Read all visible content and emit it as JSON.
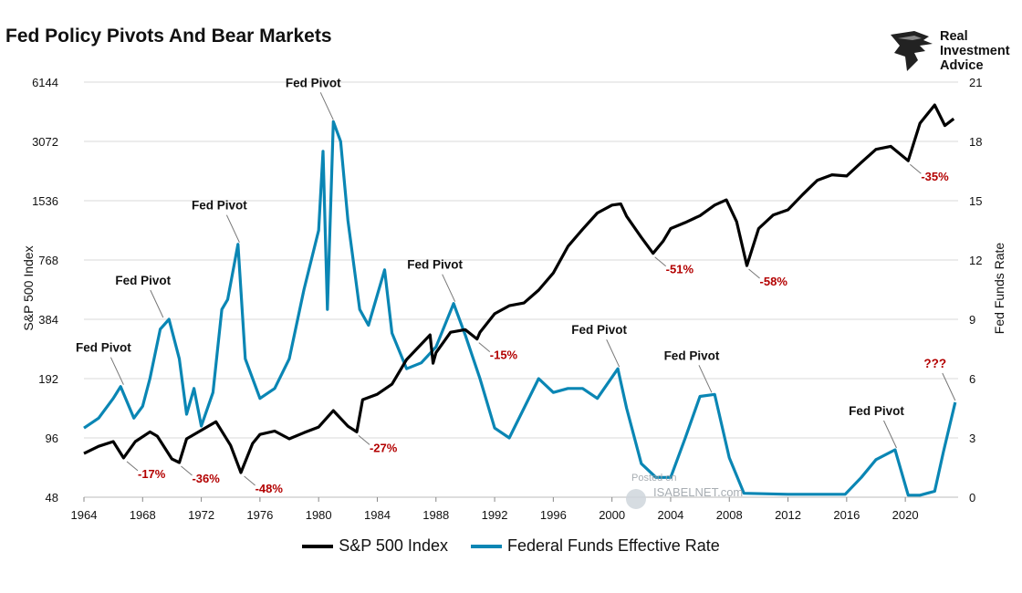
{
  "title": "Fed Policy Pivots And Bear Markets",
  "logo": {
    "text": "Real\nInvestment\nAdvice",
    "icon": "eagle-head-icon"
  },
  "watermark": {
    "posted": "Posted on",
    "site": "ISABELNET.com"
  },
  "colors": {
    "sp500": "#000000",
    "fedfunds": "#0a86b4",
    "annotation_red": "#b30000",
    "grid": "#d9d9d9"
  },
  "chart_data": {
    "type": "line",
    "title": "Fed Policy Pivots And Bear Markets",
    "xlabel": "",
    "y_left_label": "S&P 500 Index",
    "y_right_label": "Fed Funds Rate",
    "x_range": [
      1964,
      2023.6
    ],
    "x_ticks": [
      "1964",
      "1968",
      "1972",
      "1976",
      "1980",
      "1984",
      "1988",
      "1992",
      "1996",
      "2000",
      "2004",
      "2008",
      "2012",
      "2016",
      "2020"
    ],
    "y_left_scale": "log2",
    "y_left_range": [
      48,
      6144
    ],
    "y_left_ticks": [
      "48",
      "96",
      "192",
      "384",
      "768",
      "1536",
      "3072",
      "6144"
    ],
    "y_right_range": [
      0,
      21
    ],
    "y_right_ticks": [
      "0",
      "3",
      "6",
      "9",
      "12",
      "15",
      "18",
      "21"
    ],
    "grid": "horizontal",
    "legend_position": "bottom",
    "series": [
      {
        "name": "S&P 500 Index",
        "axis": "left",
        "points": [
          [
            1964,
            80
          ],
          [
            1965,
            87
          ],
          [
            1966,
            92
          ],
          [
            1966.7,
            76
          ],
          [
            1967.5,
            92
          ],
          [
            1968.5,
            103
          ],
          [
            1969,
            98
          ],
          [
            1970,
            75
          ],
          [
            1970.5,
            72
          ],
          [
            1971,
            95
          ],
          [
            1972,
            105
          ],
          [
            1973,
            116
          ],
          [
            1974,
            88
          ],
          [
            1974.7,
            64
          ],
          [
            1975.5,
            90
          ],
          [
            1976,
            100
          ],
          [
            1977,
            104
          ],
          [
            1978,
            95
          ],
          [
            1979,
            102
          ],
          [
            1980,
            109
          ],
          [
            1981,
            132
          ],
          [
            1982,
            110
          ],
          [
            1982.6,
            103
          ],
          [
            1983,
            150
          ],
          [
            1984,
            160
          ],
          [
            1985,
            180
          ],
          [
            1986,
            240
          ],
          [
            1987.6,
            320
          ],
          [
            1987.8,
            230
          ],
          [
            1988,
            260
          ],
          [
            1989,
            330
          ],
          [
            1990,
            340
          ],
          [
            1990.8,
            305
          ],
          [
            1991,
            330
          ],
          [
            1992,
            410
          ],
          [
            1993,
            450
          ],
          [
            1994,
            465
          ],
          [
            1995,
            540
          ],
          [
            1996,
            660
          ],
          [
            1997,
            900
          ],
          [
            1998,
            1100
          ],
          [
            1999,
            1330
          ],
          [
            2000,
            1460
          ],
          [
            2000.6,
            1480
          ],
          [
            2001,
            1280
          ],
          [
            2002,
            1000
          ],
          [
            2002.8,
            830
          ],
          [
            2003.5,
            960
          ],
          [
            2004,
            1110
          ],
          [
            2005,
            1190
          ],
          [
            2006,
            1290
          ],
          [
            2007,
            1460
          ],
          [
            2007.8,
            1550
          ],
          [
            2008.5,
            1200
          ],
          [
            2009.2,
            720
          ],
          [
            2010,
            1110
          ],
          [
            2011,
            1300
          ],
          [
            2012,
            1380
          ],
          [
            2013,
            1650
          ],
          [
            2014,
            1950
          ],
          [
            2015,
            2080
          ],
          [
            2016,
            2050
          ],
          [
            2017,
            2400
          ],
          [
            2018,
            2800
          ],
          [
            2019,
            2900
          ],
          [
            2020.2,
            2450
          ],
          [
            2021,
            3800
          ],
          [
            2022,
            4700
          ],
          [
            2022.7,
            3700
          ],
          [
            2023.3,
            4000
          ]
        ]
      },
      {
        "name": "Federal Funds Effective Rate",
        "axis": "right",
        "points": [
          [
            1964,
            3.5
          ],
          [
            1965,
            4.0
          ],
          [
            1966,
            5.0
          ],
          [
            1966.5,
            5.6
          ],
          [
            1967.4,
            4.0
          ],
          [
            1968,
            4.6
          ],
          [
            1968.5,
            6.0
          ],
          [
            1969.2,
            8.5
          ],
          [
            1969.8,
            9.0
          ],
          [
            1970.5,
            7.0
          ],
          [
            1971,
            4.2
          ],
          [
            1971.5,
            5.5
          ],
          [
            1972,
            3.6
          ],
          [
            1972.8,
            5.3
          ],
          [
            1973.4,
            9.5
          ],
          [
            1973.8,
            10.0
          ],
          [
            1974.5,
            12.8
          ],
          [
            1975,
            7.0
          ],
          [
            1976,
            5.0
          ],
          [
            1977,
            5.5
          ],
          [
            1978,
            7.0
          ],
          [
            1979,
            10.5
          ],
          [
            1980,
            13.5
          ],
          [
            1980.3,
            17.5
          ],
          [
            1980.6,
            9.5
          ],
          [
            1981,
            19.0
          ],
          [
            1981.5,
            18.0
          ],
          [
            1982,
            14.0
          ],
          [
            1982.8,
            9.5
          ],
          [
            1983.4,
            8.7
          ],
          [
            1984.5,
            11.5
          ],
          [
            1985,
            8.3
          ],
          [
            1986,
            6.5
          ],
          [
            1987,
            6.8
          ],
          [
            1988,
            7.6
          ],
          [
            1989.2,
            9.8
          ],
          [
            1990,
            8.2
          ],
          [
            1991,
            6.0
          ],
          [
            1992,
            3.5
          ],
          [
            1993,
            3.0
          ],
          [
            1994,
            4.5
          ],
          [
            1995,
            6.0
          ],
          [
            1996,
            5.3
          ],
          [
            1997,
            5.5
          ],
          [
            1998,
            5.5
          ],
          [
            1999,
            5.0
          ],
          [
            2000.4,
            6.5
          ],
          [
            2001,
            4.5
          ],
          [
            2002,
            1.7
          ],
          [
            2003,
            1.0
          ],
          [
            2004,
            1.0
          ],
          [
            2005,
            3.0
          ],
          [
            2006,
            5.1
          ],
          [
            2007,
            5.2
          ],
          [
            2008,
            2.0
          ],
          [
            2009,
            0.2
          ],
          [
            2012,
            0.15
          ],
          [
            2015.9,
            0.15
          ],
          [
            2017,
            1.0
          ],
          [
            2018,
            1.9
          ],
          [
            2019.3,
            2.4
          ],
          [
            2020.2,
            0.1
          ],
          [
            2021,
            0.1
          ],
          [
            2022,
            0.3
          ],
          [
            2022.6,
            2.3
          ],
          [
            2023.4,
            4.8
          ]
        ]
      }
    ],
    "annotations": [
      {
        "text": "Fed Pivot",
        "x": 1966.7,
        "y": 5.6,
        "axis": "right"
      },
      {
        "text": "Fed Pivot",
        "x": 1969.4,
        "y": 9.0,
        "axis": "right"
      },
      {
        "text": "Fed Pivot",
        "x": 1974.6,
        "y": 12.8,
        "axis": "right"
      },
      {
        "text": "Fed Pivot",
        "x": 1981.0,
        "y": 19.0,
        "axis": "right"
      },
      {
        "text": "Fed Pivot",
        "x": 1989.3,
        "y": 9.8,
        "axis": "right"
      },
      {
        "text": "Fed Pivot",
        "x": 2000.5,
        "y": 6.5,
        "axis": "right"
      },
      {
        "text": "Fed Pivot",
        "x": 2006.8,
        "y": 5.2,
        "axis": "right"
      },
      {
        "text": "Fed Pivot",
        "x": 2019.4,
        "y": 2.4,
        "axis": "right"
      },
      {
        "text": "???",
        "x": 2023.4,
        "y": 4.8,
        "axis": "right"
      },
      {
        "text": "-17%",
        "x": 1966.8,
        "y": 76,
        "axis": "left"
      },
      {
        "text": "-36%",
        "x": 1970.5,
        "y": 72,
        "axis": "left"
      },
      {
        "text": "-48%",
        "x": 1974.8,
        "y": 64,
        "axis": "left"
      },
      {
        "text": "-27%",
        "x": 1982.6,
        "y": 103,
        "axis": "left"
      },
      {
        "text": "-15%",
        "x": 1990.8,
        "y": 305,
        "axis": "left"
      },
      {
        "text": "-51%",
        "x": 2002.8,
        "y": 830,
        "axis": "left"
      },
      {
        "text": "-58%",
        "x": 2009.2,
        "y": 720,
        "axis": "left"
      },
      {
        "text": "-35%",
        "x": 2020.2,
        "y": 2450,
        "axis": "left"
      }
    ]
  }
}
